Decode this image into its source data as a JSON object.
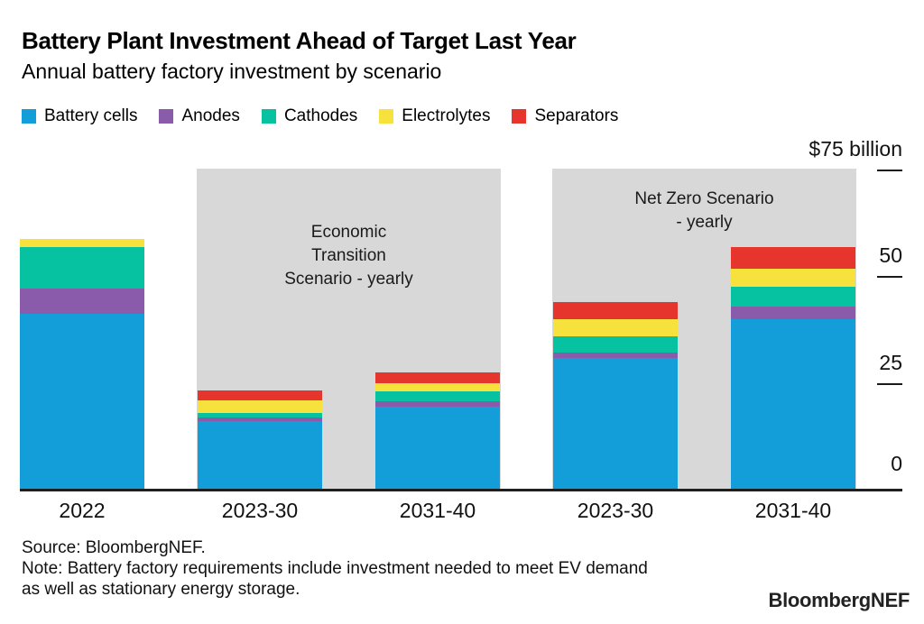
{
  "header": {
    "title": "Battery Plant Investment Ahead of Target Last Year",
    "subtitle": "Annual battery factory investment by scenario"
  },
  "legend": [
    {
      "label": "Battery cells",
      "color": "#149ED9",
      "icon": "blue-swatch"
    },
    {
      "label": "Anodes",
      "color": "#8A5AAB",
      "icon": "purple-swatch"
    },
    {
      "label": "Cathodes",
      "color": "#06C2A0",
      "icon": "teal-swatch"
    },
    {
      "label": "Electrolytes",
      "color": "#F7E13C",
      "icon": "yellow-swatch"
    },
    {
      "label": "Separators",
      "color": "#E6352C",
      "icon": "red-swatch"
    }
  ],
  "chart_data": {
    "type": "bar",
    "stacked": true,
    "unit": "$ billion",
    "title": "Annual battery factory investment by scenario",
    "categories": [
      "2022",
      "2023-30",
      "2031-40",
      "2023-30",
      "2031-40"
    ],
    "series": [
      {
        "name": "Battery cells",
        "color": "#149ED9",
        "values": [
          41.2,
          16.0,
          19.4,
          30.8,
          40.0
        ]
      },
      {
        "name": "Anodes",
        "color": "#8A5AAB",
        "values": [
          5.9,
          0.9,
          1.4,
          1.4,
          2.8
        ]
      },
      {
        "name": "Cathodes",
        "color": "#06C2A0",
        "values": [
          9.7,
          1.1,
          2.2,
          3.7,
          4.8
        ]
      },
      {
        "name": "Electrolytes",
        "color": "#F7E13C",
        "values": [
          1.9,
          3.0,
          2.0,
          4.1,
          4.2
        ]
      },
      {
        "name": "Separators",
        "color": "#E6352C",
        "values": [
          0,
          2.3,
          2.5,
          3.9,
          5.1
        ]
      }
    ],
    "totals": [
      58.7,
      23.3,
      27.5,
      43.9,
      56.9
    ],
    "ylim": [
      0,
      75
    ],
    "y_axis": {
      "top_label": "$75 billion",
      "ticks": [
        75,
        50,
        25,
        0
      ],
      "position": "right",
      "grid": false
    },
    "legend_position": "top",
    "bands": [
      {
        "label": "Economic Transition Scenario - yearly",
        "lines": [
          "Economic",
          "Transition",
          "Scenario - yearly"
        ],
        "from_bar": 1,
        "to_bar": 2,
        "color": "#d8d8d8"
      },
      {
        "label": "Net Zero Scenario - yearly",
        "lines": [
          "Net Zero Scenario",
          "- yearly"
        ],
        "from_bar": 3,
        "to_bar": 4,
        "color": "#d8d8d8"
      }
    ]
  },
  "footer": {
    "source": "Source: BloombergNEF.",
    "note_line1": "Note: Battery factory requirements include investment needed to meet EV demand",
    "note_line2": "as well as stationary energy storage.",
    "logo": "BloombergNEF"
  }
}
